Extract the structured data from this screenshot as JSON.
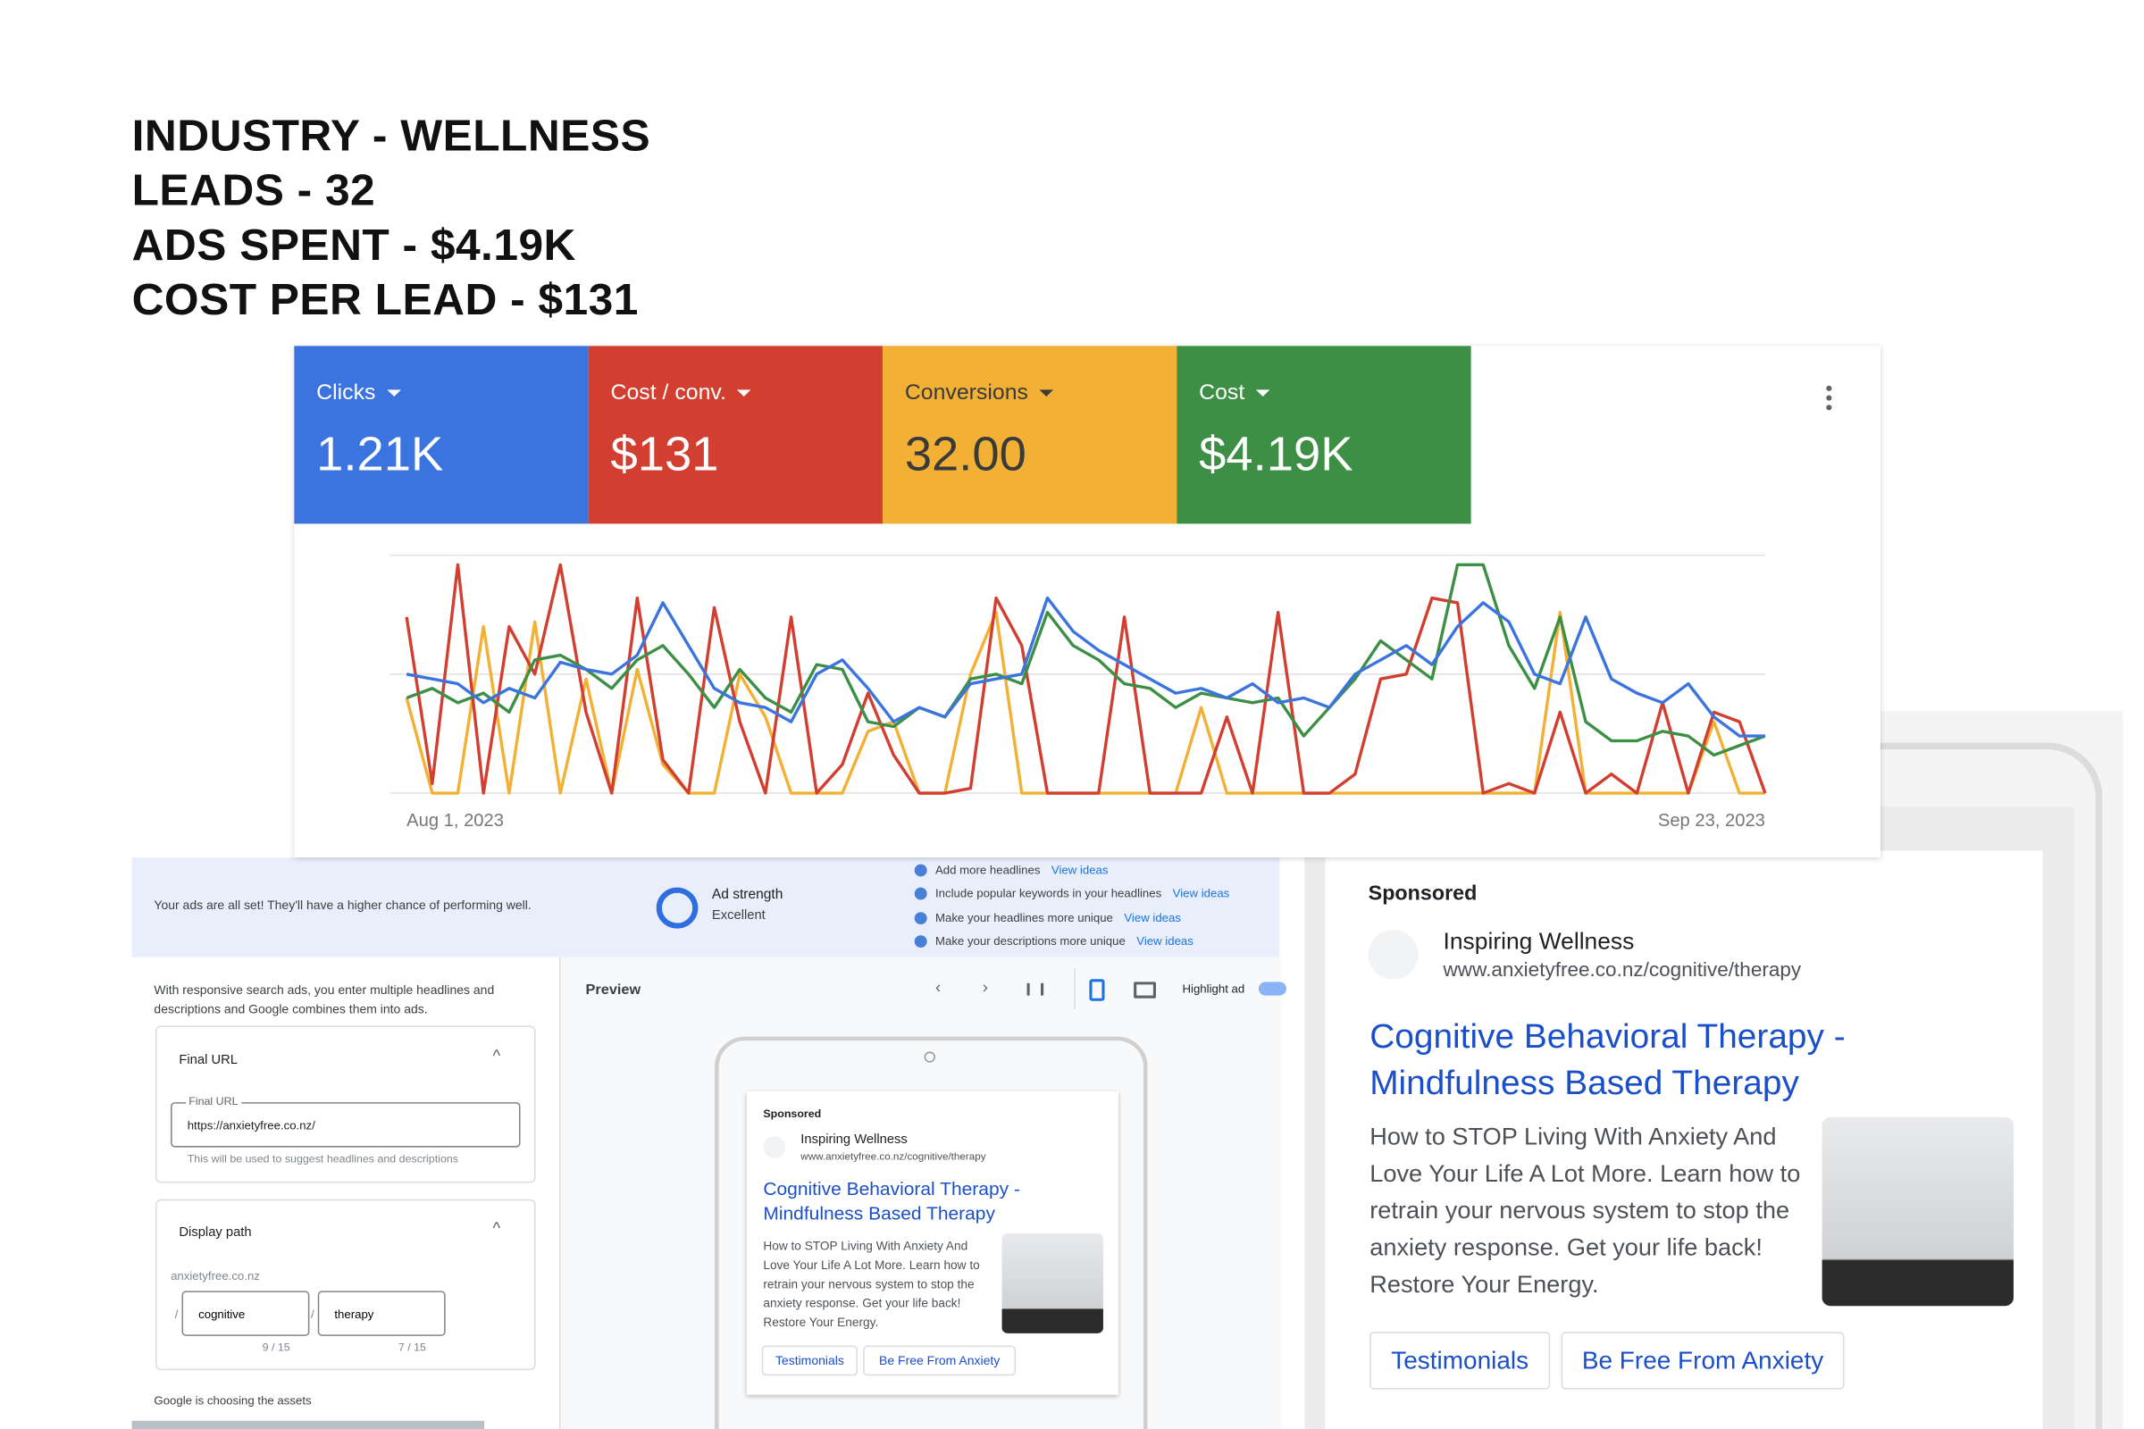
{
  "header": {
    "lines": [
      "INDUSTRY - WELLNESS",
      "LEADS - 32",
      "ADS SPENT - $4.19K",
      "COST PER LEAD - $131"
    ]
  },
  "metric_values": [
    "1.21K",
    "$131",
    "32.00",
    "$4.19K"
  ],
  "chart_data": {
    "type": "line",
    "categories": [
      "Aug 1, 2023",
      null,
      null,
      null,
      null,
      null,
      null,
      null,
      null,
      null,
      null,
      null,
      null,
      null,
      null,
      null,
      null,
      null,
      null,
      null,
      null,
      null,
      null,
      null,
      null,
      null,
      null,
      null,
      null,
      null,
      null,
      null,
      null,
      null,
      null,
      null,
      null,
      null,
      null,
      null,
      null,
      null,
      null,
      null,
      null,
      null,
      null,
      null,
      null,
      null,
      null,
      null,
      null,
      "Sep 23, 2023"
    ],
    "series": [
      {
        "name": "Clicks",
        "color": "#3b74de",
        "values": [
          50,
          48,
          46,
          38,
          44,
          40,
          55,
          52,
          50,
          58,
          80,
          62,
          44,
          38,
          36,
          30,
          50,
          56,
          44,
          30,
          36,
          32,
          46,
          48,
          50,
          82,
          68,
          60,
          54,
          48,
          42,
          44,
          40,
          46,
          38,
          40,
          36,
          50,
          56,
          62,
          54,
          70,
          80,
          72,
          50,
          46,
          74,
          48,
          42,
          38,
          46,
          32,
          24,
          24
        ]
      },
      {
        "name": "Cost / conv.",
        "color": "#d23f31",
        "values": [
          74,
          4,
          96,
          0,
          70,
          50,
          96,
          34,
          0,
          82,
          14,
          0,
          78,
          30,
          0,
          74,
          0,
          12,
          42,
          16,
          0,
          0,
          2,
          82,
          62,
          0,
          0,
          0,
          74,
          0,
          0,
          0,
          32,
          0,
          76,
          0,
          0,
          8,
          48,
          50,
          82,
          80,
          0,
          4,
          0,
          34,
          0,
          8,
          0,
          38,
          0,
          34,
          30,
          0
        ]
      },
      {
        "name": "Conversions",
        "color": "#f2b134",
        "values": [
          40,
          0,
          0,
          70,
          0,
          72,
          0,
          48,
          0,
          52,
          12,
          0,
          0,
          50,
          32,
          0,
          0,
          0,
          26,
          30,
          0,
          0,
          50,
          76,
          0,
          0,
          0,
          0,
          0,
          0,
          0,
          36,
          0,
          0,
          0,
          0,
          0,
          0,
          0,
          0,
          0,
          0,
          0,
          0,
          0,
          76,
          0,
          0,
          0,
          0,
          0,
          30,
          0,
          0
        ]
      },
      {
        "name": "Cost",
        "color": "#3d8f45",
        "values": [
          40,
          44,
          38,
          42,
          34,
          56,
          58,
          52,
          44,
          56,
          62,
          50,
          36,
          52,
          40,
          34,
          54,
          52,
          30,
          28,
          36,
          32,
          48,
          50,
          46,
          76,
          62,
          56,
          46,
          44,
          36,
          42,
          40,
          38,
          40,
          24,
          36,
          48,
          64,
          56,
          48,
          96,
          96,
          62,
          44,
          74,
          30,
          22,
          22,
          26,
          24,
          16,
          20,
          24
        ]
      }
    ],
    "ylim": [
      0,
      100
    ],
    "yticks": [
      0,
      50,
      100
    ],
    "grid": true
  },
  "ad_strength": {
    "message": "Your ads are all set! They'll have a higher chance of performing well.",
    "label": "Ad strength",
    "rating": "Excellent",
    "tips": [
      {
        "text": "Add more headlines",
        "link": "View ideas"
      },
      {
        "text": "Include popular keywords in your headlines",
        "link": "View ideas"
      },
      {
        "text": "Make your headlines more unique",
        "link": "View ideas"
      },
      {
        "text": "Make your descriptions more unique",
        "link": "View ideas"
      }
    ]
  },
  "editor": {
    "intro": "With responsive search ads, you enter multiple headlines and descriptions and Google combines them into ads.",
    "final_url_section": "Final URL",
    "final_url_field_label": "Final URL",
    "final_url": "https://anxietyfree.co.nz/",
    "final_url_help": "This will be used to suggest headlines and descriptions",
    "display_path_section": "Display path",
    "domain": "anxietyfree.co.nz",
    "separator": "/",
    "path1": "cognitive",
    "path2": "therapy",
    "path1_count": "9 / 15",
    "path2_count": "7 / 15",
    "footer": "Google is choosing the assets"
  },
  "preview": {
    "title": "Preview",
    "highlight": "Highlight ad"
  },
  "ad": {
    "sponsored": "Sponsored",
    "advertiser": "Inspiring Wellness",
    "url": "www.anxietyfree.co.nz/cognitive/therapy",
    "headline_1": "Cognitive Behavioral Therapy -",
    "headline_2": "Mindfulness Based Therapy",
    "description": "How to STOP Living With Anxiety And Love Your Life A Lot More. Learn how to retrain your nervous system to stop the anxiety response. Get your life back! Restore Your Energy.",
    "sitelinks": [
      "Testimonials",
      "Be Free From Anxiety"
    ]
  }
}
